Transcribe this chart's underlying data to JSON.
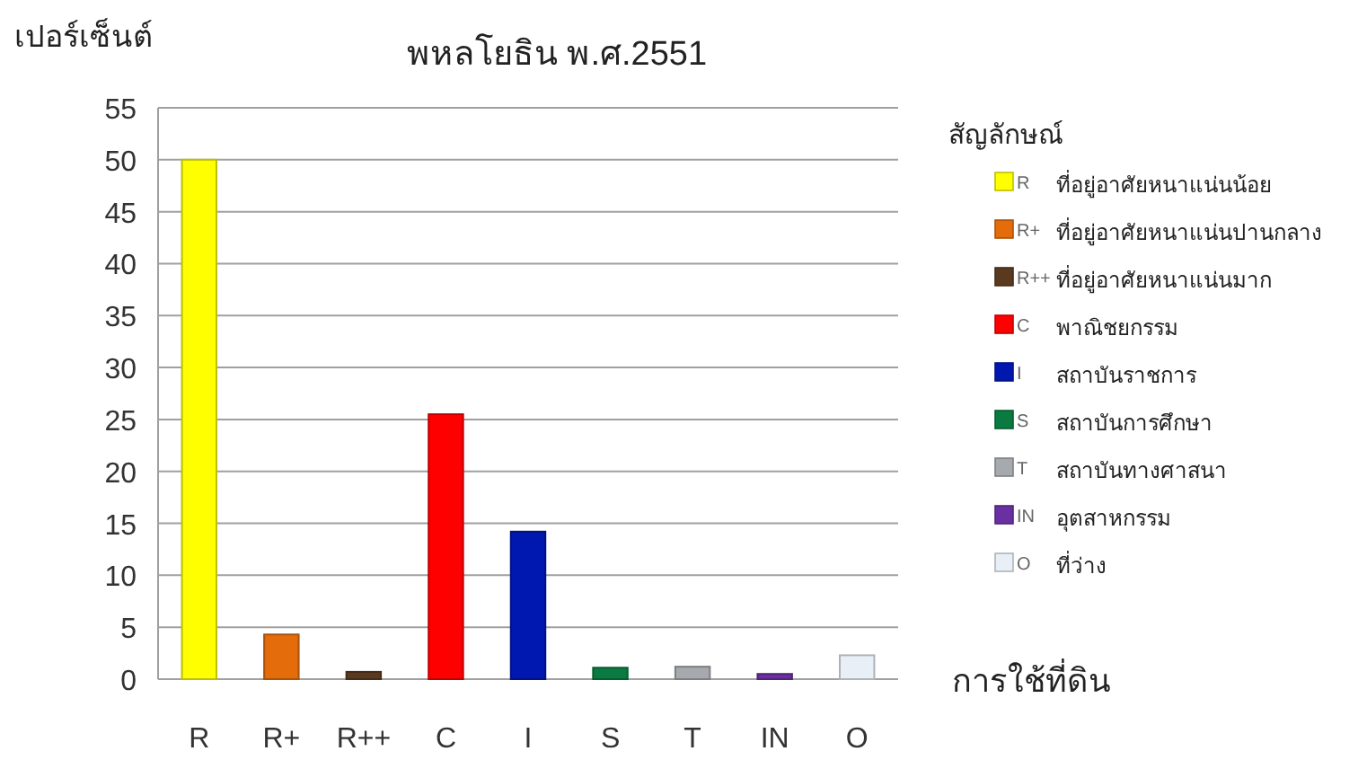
{
  "chart_data": {
    "type": "bar",
    "title": "พหลโยธิน พ.ศ.2551",
    "ylabel": "เปอร์เซ็นต์",
    "xlabel": "การใช้ที่ดิน",
    "legend_title": "สัญลักษณ์",
    "categories": [
      "R",
      "R+",
      "R++",
      "C",
      "I",
      "S",
      "T",
      "IN",
      "O"
    ],
    "series": [
      {
        "name": "ที่อยู่อาศัยหนาแน่นน้อย",
        "color": "#ffff00",
        "values": [
          50,
          null,
          null,
          null,
          null,
          null,
          null,
          null,
          null
        ]
      },
      {
        "name": "ที่อยู่อาศัยหนาแน่นปานกลาง",
        "color": "#e46c0a",
        "values": [
          null,
          4.3,
          null,
          null,
          null,
          null,
          null,
          null,
          null
        ]
      },
      {
        "name": "ที่อยู่อาศัยหนาแน่นมาก",
        "color": "#5a3a1e",
        "values": [
          null,
          null,
          0.7,
          null,
          null,
          null,
          null,
          null,
          null
        ]
      },
      {
        "name": "พาณิชยกรรม",
        "color": "#ff0000",
        "values": [
          null,
          null,
          null,
          25.5,
          null,
          null,
          null,
          null,
          null
        ]
      },
      {
        "name": "สถาบันราชการ",
        "color": "#0018b0",
        "values": [
          null,
          null,
          null,
          null,
          14.2,
          null,
          null,
          null,
          null
        ]
      },
      {
        "name": "สถาบันการศึกษา",
        "color": "#0a7a40",
        "values": [
          null,
          null,
          null,
          null,
          null,
          1.1,
          null,
          null,
          null
        ]
      },
      {
        "name": "สถาบันทางศาสนา",
        "color": "#a6a9ad",
        "values": [
          null,
          null,
          null,
          null,
          null,
          null,
          1.2,
          null,
          null
        ]
      },
      {
        "name": "อุตสาหกรรม",
        "color": "#6a2fa0",
        "values": [
          null,
          null,
          null,
          null,
          null,
          null,
          null,
          0.5,
          null
        ]
      },
      {
        "name": "ที่ว่าง",
        "color": "#e9eff6",
        "values": [
          null,
          null,
          null,
          null,
          null,
          null,
          null,
          null,
          2.3
        ]
      }
    ],
    "ylim": [
      0,
      55
    ],
    "yticks": [
      0,
      5,
      10,
      15,
      20,
      25,
      30,
      35,
      40,
      45,
      50,
      55
    ],
    "grid": "y",
    "legend": "right"
  }
}
